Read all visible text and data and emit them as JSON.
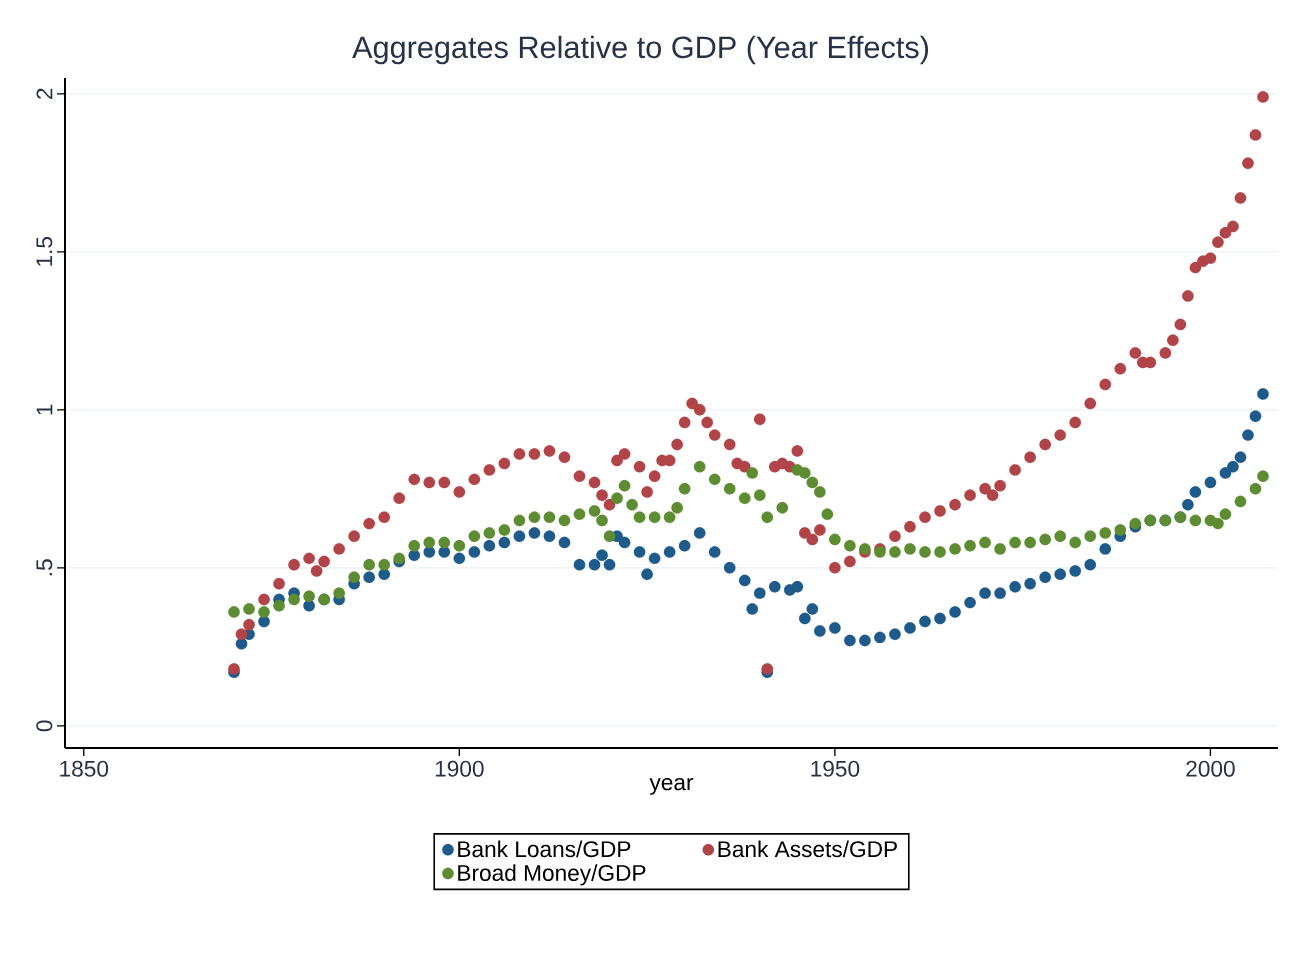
{
  "chart_data": {
    "type": "scatter",
    "title": "Aggregates Relative to GDP (Year Effects)",
    "xlabel": "year",
    "xlim": [
      1847.5,
      2009
    ],
    "ylim": [
      -0.07,
      2.05
    ],
    "xticks": [
      1850,
      1900,
      1950,
      2000
    ],
    "yticks": [
      0,
      {
        "value": 0.5,
        "label": ".5"
      },
      1,
      1.5,
      2
    ],
    "grid": "y",
    "legend": "bottom",
    "marker": "circle",
    "series": [
      {
        "name": "Bank Loans/GDP",
        "color": "#1f5b8a",
        "x": [
          1870,
          1871,
          1872,
          1874,
          1876,
          1878,
          1880,
          1882,
          1884,
          1886,
          1888,
          1890,
          1892,
          1894,
          1896,
          1898,
          1900,
          1902,
          1904,
          1906,
          1908,
          1910,
          1912,
          1914,
          1916,
          1918,
          1919,
          1920,
          1921,
          1922,
          1924,
          1925,
          1926,
          1928,
          1930,
          1932,
          1934,
          1936,
          1938,
          1939,
          1940,
          1941,
          1942,
          1944,
          1945,
          1946,
          1947,
          1948,
          1950,
          1952,
          1954,
          1956,
          1958,
          1960,
          1962,
          1964,
          1966,
          1968,
          1970,
          1972,
          1974,
          1976,
          1978,
          1980,
          1982,
          1984,
          1986,
          1988,
          1990,
          1992,
          1994,
          1996,
          1997,
          1998,
          2000,
          2002,
          2003,
          2004,
          2005,
          2006,
          2007
        ],
        "values": [
          0.17,
          0.26,
          0.29,
          0.33,
          0.4,
          0.42,
          0.38,
          0.4,
          0.4,
          0.45,
          0.47,
          0.48,
          0.52,
          0.54,
          0.55,
          0.55,
          0.53,
          0.55,
          0.57,
          0.58,
          0.6,
          0.61,
          0.6,
          0.58,
          0.51,
          0.51,
          0.54,
          0.51,
          0.6,
          0.58,
          0.55,
          0.48,
          0.53,
          0.55,
          0.57,
          0.61,
          0.55,
          0.5,
          0.46,
          0.37,
          0.42,
          0.17,
          0.44,
          0.43,
          0.44,
          0.34,
          0.37,
          0.3,
          0.31,
          0.27,
          0.27,
          0.28,
          0.29,
          0.31,
          0.33,
          0.34,
          0.36,
          0.39,
          0.42,
          0.42,
          0.44,
          0.45,
          0.47,
          0.48,
          0.49,
          0.51,
          0.56,
          0.6,
          0.63,
          0.65,
          0.65,
          0.66,
          0.7,
          0.74,
          0.77,
          0.8,
          0.82,
          0.85,
          0.92,
          0.98,
          1.05
        ]
      },
      {
        "name": "Bank Assets/GDP",
        "color": "#b04448",
        "x": [
          1870,
          1871,
          1872,
          1874,
          1876,
          1878,
          1880,
          1881,
          1882,
          1884,
          1886,
          1888,
          1890,
          1892,
          1894,
          1896,
          1898,
          1900,
          1902,
          1904,
          1906,
          1908,
          1910,
          1912,
          1914,
          1916,
          1918,
          1919,
          1920,
          1921,
          1922,
          1924,
          1925,
          1926,
          1927,
          1928,
          1929,
          1930,
          1931,
          1932,
          1933,
          1934,
          1936,
          1937,
          1938,
          1940,
          1941,
          1942,
          1943,
          1944,
          1945,
          1946,
          1947,
          1948,
          1950,
          1952,
          1954,
          1956,
          1958,
          1960,
          1962,
          1964,
          1966,
          1968,
          1970,
          1971,
          1972,
          1974,
          1976,
          1978,
          1980,
          1982,
          1984,
          1986,
          1988,
          1990,
          1991,
          1992,
          1994,
          1995,
          1996,
          1997,
          1998,
          1999,
          2000,
          2001,
          2002,
          2003,
          2004,
          2005,
          2006,
          2007
        ],
        "values": [
          0.18,
          0.29,
          0.32,
          0.4,
          0.45,
          0.51,
          0.53,
          0.49,
          0.52,
          0.56,
          0.6,
          0.64,
          0.66,
          0.72,
          0.78,
          0.77,
          0.77,
          0.74,
          0.78,
          0.81,
          0.83,
          0.86,
          0.86,
          0.87,
          0.85,
          0.79,
          0.77,
          0.73,
          0.7,
          0.84,
          0.86,
          0.82,
          0.74,
          0.79,
          0.84,
          0.84,
          0.89,
          0.96,
          1.02,
          1.0,
          0.96,
          0.92,
          0.89,
          0.83,
          0.82,
          0.97,
          0.18,
          0.82,
          0.83,
          0.82,
          0.87,
          0.61,
          0.59,
          0.62,
          0.5,
          0.52,
          0.55,
          0.56,
          0.6,
          0.63,
          0.66,
          0.68,
          0.7,
          0.73,
          0.75,
          0.73,
          0.76,
          0.81,
          0.85,
          0.89,
          0.92,
          0.96,
          1.02,
          1.08,
          1.13,
          1.18,
          1.15,
          1.15,
          1.18,
          1.22,
          1.27,
          1.36,
          1.45,
          1.47,
          1.48,
          1.53,
          1.56,
          1.58,
          1.67,
          1.78,
          1.87,
          1.99
        ]
      },
      {
        "name": "Broad Money/GDP",
        "color": "#5e8c33",
        "x": [
          1870,
          1872,
          1874,
          1876,
          1878,
          1880,
          1882,
          1884,
          1886,
          1888,
          1890,
          1892,
          1894,
          1896,
          1898,
          1900,
          1902,
          1904,
          1906,
          1908,
          1910,
          1912,
          1914,
          1916,
          1918,
          1919,
          1920,
          1921,
          1922,
          1923,
          1924,
          1926,
          1928,
          1929,
          1930,
          1932,
          1934,
          1936,
          1938,
          1939,
          1940,
          1941,
          1943,
          1945,
          1946,
          1947,
          1948,
          1949,
          1950,
          1952,
          1954,
          1956,
          1958,
          1960,
          1962,
          1964,
          1966,
          1968,
          1970,
          1972,
          1974,
          1976,
          1978,
          1980,
          1982,
          1984,
          1986,
          1988,
          1990,
          1992,
          1994,
          1996,
          1998,
          2000,
          2001,
          2002,
          2004,
          2006,
          2007
        ],
        "values": [
          0.36,
          0.37,
          0.36,
          0.38,
          0.4,
          0.41,
          0.4,
          0.42,
          0.47,
          0.51,
          0.51,
          0.53,
          0.57,
          0.58,
          0.58,
          0.57,
          0.6,
          0.61,
          0.62,
          0.65,
          0.66,
          0.66,
          0.65,
          0.67,
          0.68,
          0.65,
          0.6,
          0.72,
          0.76,
          0.7,
          0.66,
          0.66,
          0.66,
          0.69,
          0.75,
          0.82,
          0.78,
          0.75,
          0.72,
          0.8,
          0.73,
          0.66,
          0.69,
          0.81,
          0.8,
          0.77,
          0.74,
          0.67,
          0.59,
          0.57,
          0.56,
          0.55,
          0.55,
          0.56,
          0.55,
          0.55,
          0.56,
          0.57,
          0.58,
          0.56,
          0.58,
          0.58,
          0.59,
          0.6,
          0.58,
          0.6,
          0.61,
          0.62,
          0.64,
          0.65,
          0.65,
          0.66,
          0.65,
          0.65,
          0.64,
          0.67,
          0.71,
          0.75,
          0.79
        ]
      }
    ]
  }
}
